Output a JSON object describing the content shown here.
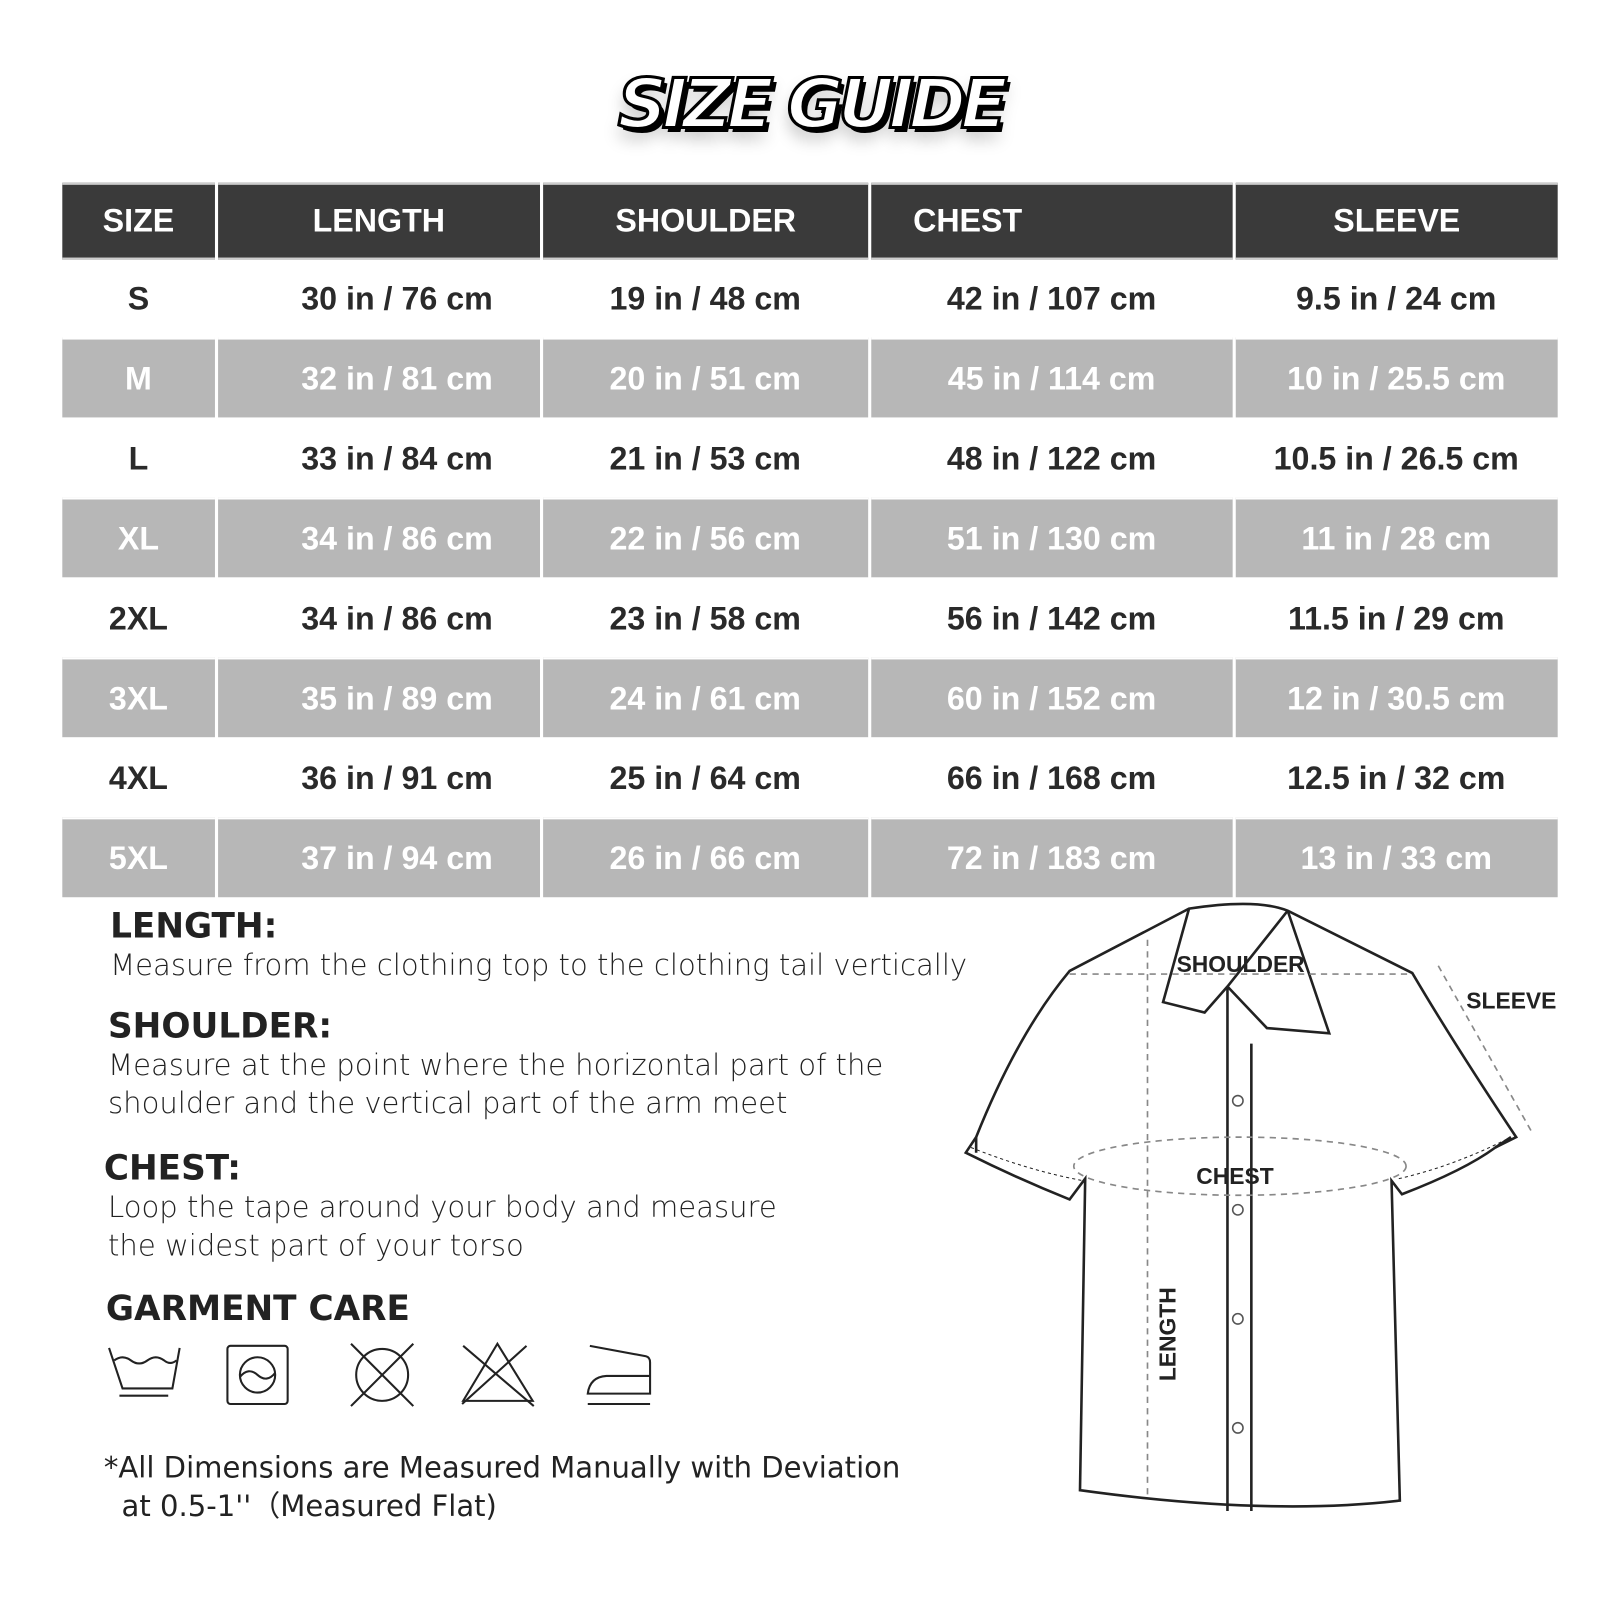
{
  "title": "SIZE GUIDE",
  "table": {
    "headers": [
      "SIZE",
      "LENGTH",
      "SHOULDER",
      "CHEST",
      "SLEEVE"
    ],
    "rows": [
      [
        "S",
        "30 in / 76 cm",
        "19 in / 48 cm",
        "42 in / 107 cm",
        "9.5 in / 24 cm"
      ],
      [
        "M",
        "32 in / 81 cm",
        "20 in / 51 cm",
        "45 in / 114 cm",
        "10 in / 25.5 cm"
      ],
      [
        "L",
        "33 in / 84 cm",
        "21 in / 53 cm",
        "48 in / 122 cm",
        "10.5 in / 26.5 cm"
      ],
      [
        "XL",
        "34 in / 86 cm",
        "22 in / 56 cm",
        "51 in / 130 cm",
        "11 in / 28 cm"
      ],
      [
        "2XL",
        "34 in / 86 cm",
        "23 in / 58 cm",
        "56 in / 142 cm",
        "11.5 in / 29 cm"
      ],
      [
        "3XL",
        "35 in / 89 cm",
        "24 in / 61 cm",
        "60 in / 152 cm",
        "12 in / 30.5 cm"
      ],
      [
        "4XL",
        "36 in / 91 cm",
        "25 in / 64 cm",
        "66 in / 168 cm",
        "12.5 in / 32 cm"
      ],
      [
        "5XL",
        "37 in / 94 cm",
        "26 in / 66 cm",
        "72 in / 183 cm",
        "13 in / 33 cm"
      ]
    ]
  },
  "instructions": {
    "length": {
      "heading": "LENGTH:",
      "text": "Measure from the clothing top to the clothing tail vertically"
    },
    "shoulder": {
      "heading": "SHOULDER:",
      "line1": "Measure at the point where the horizontal part of the",
      "line2": "shoulder and the vertical part of the arm meet"
    },
    "chest": {
      "heading": "CHEST:",
      "line1": "Loop the tape around your body and measure",
      "line2": "the widest part of your torso"
    }
  },
  "care": {
    "heading": "GARMENT CARE",
    "icons": [
      "hand-wash-icon",
      "tumble-dry-icon",
      "do-not-dry-clean-icon",
      "do-not-bleach-icon",
      "iron-icon"
    ]
  },
  "note": {
    "line1": "*All Dimensions are Measured Manually with Deviation",
    "line2": "at 0.5-1''（Measured Flat)"
  },
  "diagram": {
    "shoulder": "SHOULDER",
    "sleeve": "SLEEVE",
    "chest": "CHEST",
    "length": "LENGTH"
  }
}
